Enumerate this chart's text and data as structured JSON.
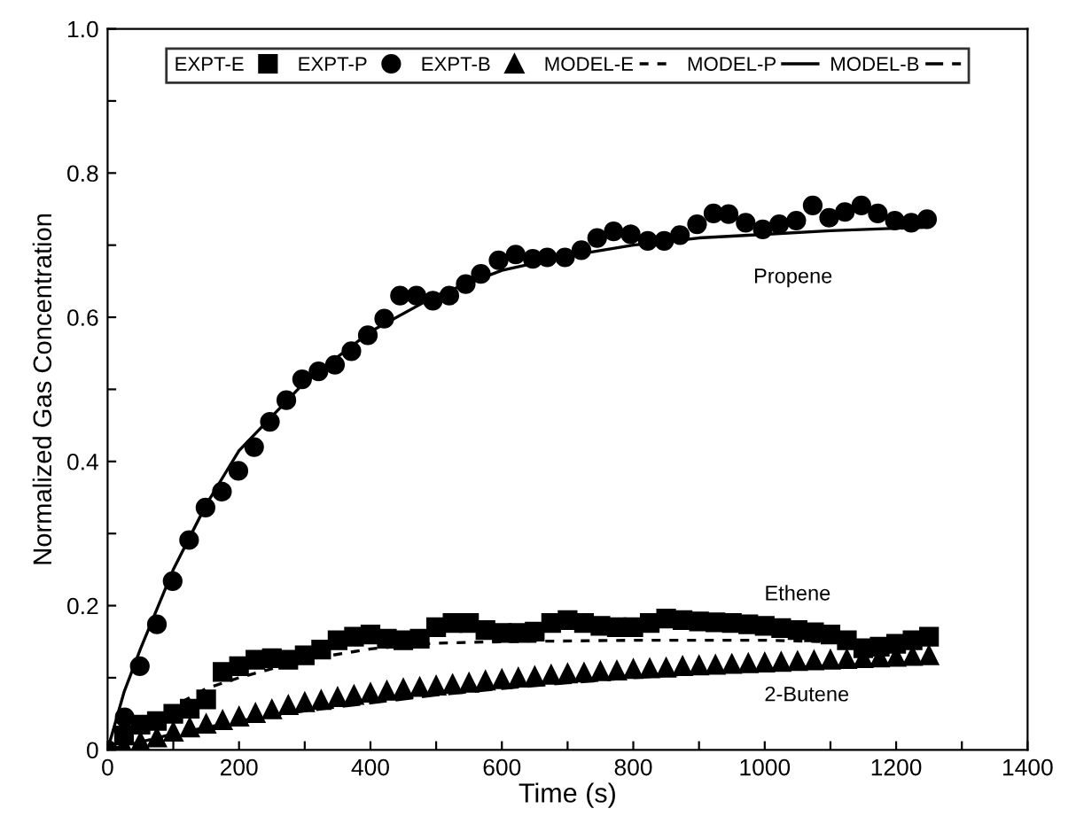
{
  "chart_data": {
    "type": "scatter",
    "xlabel": "Time (s)",
    "ylabel": "Normalized Gas Concentration",
    "xlim": [
      0,
      1400
    ],
    "ylim": [
      0,
      1.0
    ],
    "xticks": [
      0,
      {
        "value": 100,
        "label": null
      },
      200,
      {
        "value": 300,
        "label": null
      },
      400,
      {
        "value": 500,
        "label": null
      },
      600,
      {
        "value": 700,
        "label": null
      },
      800,
      {
        "value": 900,
        "label": null
      },
      1000,
      {
        "value": 1100,
        "label": null
      },
      1200,
      {
        "value": 1300,
        "label": null
      },
      1400
    ],
    "yticks": [
      {
        "value": 0,
        "label": "0"
      },
      {
        "value": 0.1,
        "label": null
      },
      0.2,
      {
        "value": 0.3,
        "label": null
      },
      0.4,
      {
        "value": 0.5,
        "label": null
      },
      0.6,
      {
        "value": 0.7,
        "label": null
      },
      0.8,
      {
        "value": 0.9,
        "label": null
      },
      {
        "value": 1.0,
        "label": "1.0"
      }
    ],
    "grid": false,
    "legend": "top",
    "annotations": [
      "Propene",
      "Ethene",
      "2-Butene"
    ],
    "series": [
      {
        "name": "EXPT-E",
        "marker": "square",
        "color": "#000000",
        "x": [
          25,
          50,
          75,
          100,
          125,
          150,
          175,
          200,
          225,
          250,
          275,
          300,
          325,
          350,
          375,
          400,
          425,
          450,
          475,
          500,
          525,
          550,
          575,
          600,
          625,
          650,
          675,
          700,
          725,
          750,
          775,
          800,
          825,
          850,
          875,
          900,
          925,
          950,
          975,
          1000,
          1025,
          1050,
          1075,
          1100,
          1125,
          1150,
          1175,
          1200,
          1225,
          1250
        ],
        "values": [
          0.02,
          0.035,
          0.04,
          0.05,
          0.057,
          0.07,
          0.108,
          0.116,
          0.125,
          0.127,
          0.125,
          0.131,
          0.139,
          0.152,
          0.157,
          0.16,
          0.154,
          0.152,
          0.154,
          0.17,
          0.176,
          0.176,
          0.166,
          0.162,
          0.162,
          0.164,
          0.176,
          0.18,
          0.176,
          0.172,
          0.17,
          0.17,
          0.176,
          0.182,
          0.18,
          0.178,
          0.177,
          0.176,
          0.174,
          0.172,
          0.169,
          0.166,
          0.163,
          0.16,
          0.152,
          0.141,
          0.143,
          0.147,
          0.152,
          0.157
        ]
      },
      {
        "name": "EXPT-P",
        "marker": "circle",
        "color": "#000000",
        "x": [
          0,
          26,
          49,
          75,
          99,
          124,
          149,
          174,
          199,
          223,
          247,
          272,
          296,
          321,
          346,
          371,
          396,
          421,
          445,
          470,
          495,
          520,
          545,
          568,
          595,
          621,
          647,
          669,
          696,
          721,
          745,
          770,
          796,
          822,
          847,
          871,
          897,
          922,
          945,
          971,
          997,
          1022,
          1048,
          1073,
          1098,
          1122,
          1147,
          1172,
          1198,
          1223,
          1247
        ],
        "values": [
          0.0,
          0.045,
          0.116,
          0.174,
          0.234,
          0.291,
          0.336,
          0.358,
          0.387,
          0.42,
          0.455,
          0.485,
          0.514,
          0.525,
          0.534,
          0.553,
          0.575,
          0.598,
          0.63,
          0.63,
          0.623,
          0.63,
          0.646,
          0.66,
          0.679,
          0.687,
          0.681,
          0.683,
          0.683,
          0.693,
          0.71,
          0.719,
          0.715,
          0.706,
          0.706,
          0.714,
          0.729,
          0.744,
          0.743,
          0.731,
          0.722,
          0.729,
          0.734,
          0.755,
          0.738,
          0.746,
          0.755,
          0.744,
          0.734,
          0.731,
          0.736
        ]
      },
      {
        "name": "EXPT-B",
        "marker": "triangle",
        "color": "#000000",
        "x": [
          25,
          50,
          75,
          100,
          125,
          150,
          175,
          200,
          225,
          250,
          275,
          300,
          325,
          350,
          375,
          400,
          425,
          450,
          475,
          500,
          525,
          550,
          575,
          600,
          625,
          650,
          675,
          700,
          725,
          750,
          775,
          800,
          825,
          850,
          875,
          900,
          925,
          950,
          975,
          1000,
          1025,
          1050,
          1075,
          1100,
          1125,
          1150,
          1175,
          1200,
          1225,
          1250
        ],
        "values": [
          0.005,
          0.011,
          0.017,
          0.025,
          0.031,
          0.036,
          0.041,
          0.046,
          0.051,
          0.056,
          0.062,
          0.066,
          0.069,
          0.073,
          0.076,
          0.079,
          0.082,
          0.085,
          0.087,
          0.089,
          0.091,
          0.093,
          0.096,
          0.098,
          0.1,
          0.102,
          0.104,
          0.106,
          0.107,
          0.109,
          0.11,
          0.112,
          0.113,
          0.114,
          0.116,
          0.117,
          0.118,
          0.119,
          0.12,
          0.121,
          0.122,
          0.123,
          0.124,
          0.125,
          0.126,
          0.127,
          0.128,
          0.129,
          0.13,
          0.131
        ]
      },
      {
        "name": "MODEL-E",
        "type": "line",
        "line_style": "dotted",
        "color": "#000000",
        "x": [
          0,
          50,
          100,
          150,
          200,
          300,
          400,
          500,
          600,
          800,
          1000,
          1100,
          1250
        ],
        "values": [
          0.0,
          0.035,
          0.06,
          0.085,
          0.1,
          0.125,
          0.14,
          0.148,
          0.15,
          0.152,
          0.152,
          0.15,
          0.148
        ]
      },
      {
        "name": "MODEL-P",
        "type": "line",
        "line_style": "solid",
        "color": "#000000",
        "x": [
          0,
          25,
          50,
          100,
          150,
          200,
          300,
          400,
          500,
          600,
          700,
          800,
          900,
          1000,
          1100,
          1250
        ],
        "values": [
          0.0,
          0.08,
          0.14,
          0.25,
          0.34,
          0.415,
          0.51,
          0.58,
          0.63,
          0.665,
          0.685,
          0.7,
          0.71,
          0.715,
          0.72,
          0.725
        ]
      },
      {
        "name": "MODEL-B",
        "type": "line",
        "line_style": "dashed",
        "color": "#000000",
        "x": [
          0,
          100,
          200,
          300,
          400,
          500,
          600,
          700,
          800,
          900,
          1000,
          1100,
          1250
        ],
        "values": [
          0.0,
          0.022,
          0.04,
          0.054,
          0.065,
          0.076,
          0.085,
          0.093,
          0.1,
          0.106,
          0.112,
          0.117,
          0.122
        ]
      }
    ]
  }
}
